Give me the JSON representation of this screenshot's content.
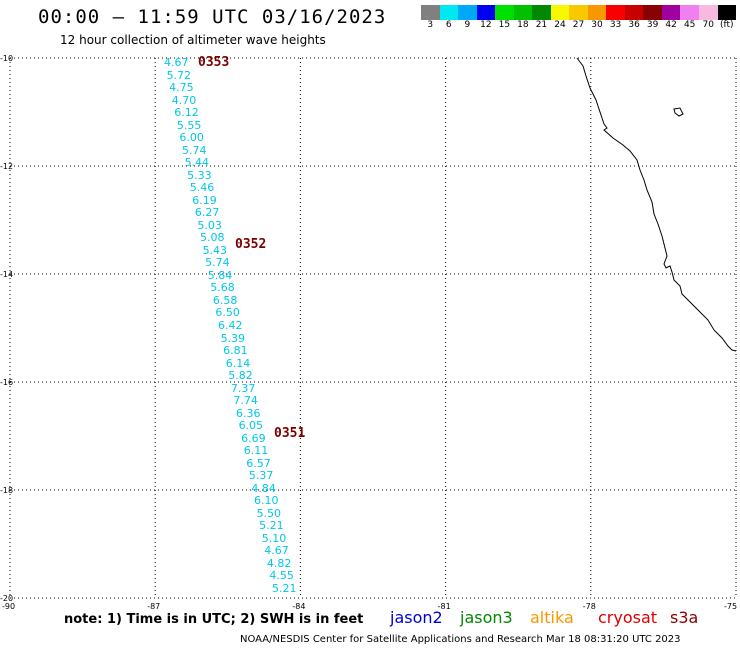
{
  "header": {
    "title": "00:00 – 11:59 UTC 03/16/2023",
    "subtitle": "12 hour collection of altimeter wave heights"
  },
  "colorbar": {
    "colors": [
      "#808080",
      "#00e8f0",
      "#00a8f8",
      "#0000f0",
      "#00e000",
      "#00c000",
      "#008800",
      "#f8f800",
      "#f8c800",
      "#f89800",
      "#f80000",
      "#c80000",
      "#880000",
      "#a000a0",
      "#f080f0",
      "#f8b8e0",
      "#000000"
    ],
    "labels": [
      "3",
      "6",
      "9",
      "12",
      "15",
      "18",
      "21",
      "24",
      "27",
      "30",
      "33",
      "36",
      "39",
      "42",
      "45",
      "70",
      "(ft)"
    ]
  },
  "axes": {
    "lat_labels": [
      "-10",
      "-12",
      "-14",
      "-16",
      "-18",
      "-20"
    ],
    "lon_labels": [
      "-90",
      "-87",
      "-84",
      "-81",
      "-78",
      "-75"
    ]
  },
  "track": {
    "swh_values": [
      "4.67",
      "5.72",
      "4.75",
      "4.70",
      "6.12",
      "5.55",
      "6.00",
      "5.74",
      "5.44",
      "5.33",
      "5.46",
      "6.19",
      "6.27",
      "5.03",
      "5.08",
      "5.43",
      "5.74",
      "5.84",
      "5.68",
      "6.58",
      "6.50",
      "6.42",
      "5.39",
      "6.81",
      "6.14",
      "5.82",
      "7.37",
      "7.74",
      "6.36",
      "6.05",
      "6.69",
      "6.11",
      "6.57",
      "5.37",
      "4.84",
      "6.10",
      "5.50",
      "5.21",
      "5.10",
      "4.67",
      "4.82",
      "4.55",
      "5.21"
    ],
    "time_tags": [
      "0353",
      "0352",
      "0351"
    ],
    "color": "#00c8e8"
  },
  "note": "note:  1) Time is in UTC; 2) SWH is in feet",
  "satellites": [
    {
      "name": "jason2",
      "color": "#0000d0"
    },
    {
      "name": "jason3",
      "color": "#008800"
    },
    {
      "name": "altika",
      "color": "#f89800"
    },
    {
      "name": "cryosat",
      "color": "#e00000"
    },
    {
      "name": "s3a",
      "color": "#880000"
    }
  ],
  "footer": "NOAA/NESDIS Center for Satellite Applications and Research    Mar 18 08:31:20 UTC 2023"
}
